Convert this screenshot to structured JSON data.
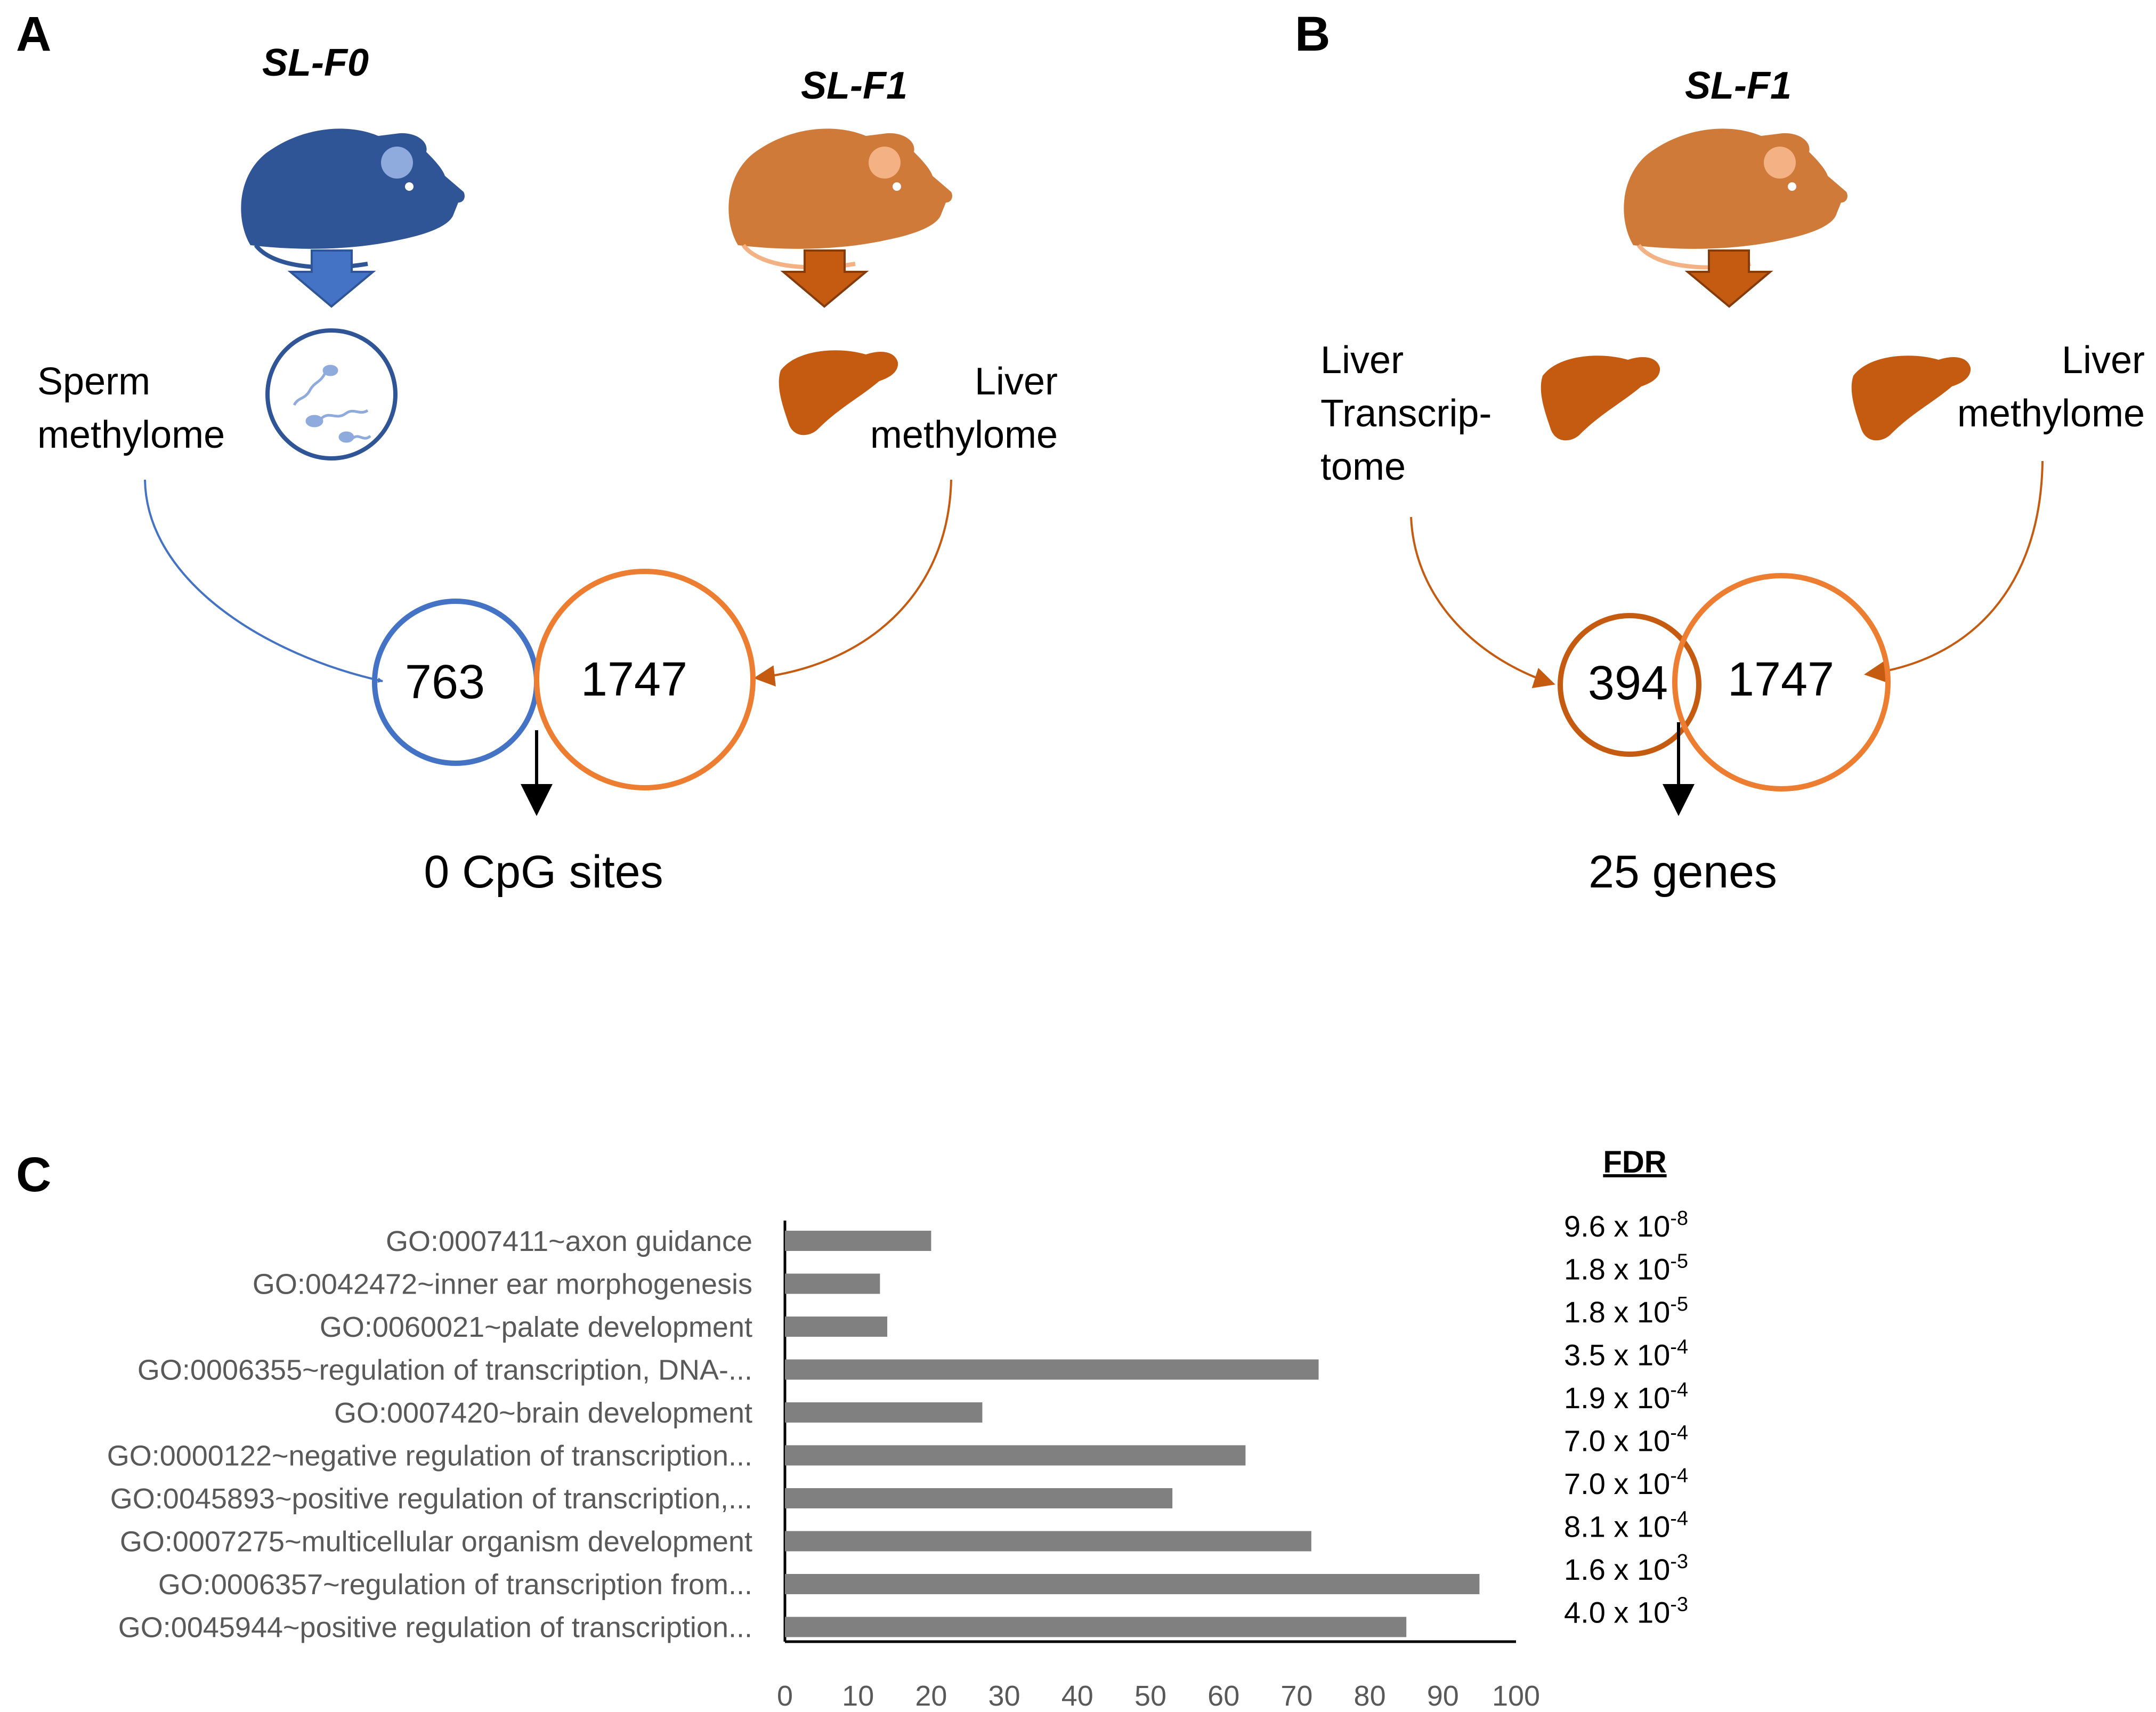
{
  "panels": {
    "a": {
      "letter": "A",
      "left_title": "SL-F0",
      "right_title": "SL-F1",
      "left_label_1": "Sperm",
      "left_label_2": "methylome",
      "right_label_1": "Liver",
      "right_label_2": "methylome",
      "venn_left": "763",
      "venn_right": "1747",
      "result": "0 CpG sites"
    },
    "b": {
      "letter": "B",
      "title": "SL-F1",
      "left_label_1": "Liver",
      "left_label_2": "Transcrip-",
      "left_label_3": "tome",
      "right_label_1": "Liver",
      "right_label_2": "methylome",
      "venn_left": "394",
      "venn_right": "1747",
      "result": "25 genes"
    },
    "c": {
      "letter": "C"
    }
  },
  "colors": {
    "blue": "#4472C4",
    "blue_dark": "#2F5597",
    "orange": "#ED7D31",
    "orange_dark": "#C55A11",
    "bar": "#808080"
  },
  "chart_data": {
    "type": "bar",
    "orientation": "horizontal",
    "categories": [
      "GO:0007411~axon guidance",
      "GO:0042472~inner ear morphogenesis",
      "GO:0060021~palate development",
      "GO:0006355~regulation of transcription, DNA-...",
      "GO:0007420~brain development",
      "GO:0000122~negative regulation of transcription...",
      "GO:0045893~positive regulation of transcription,...",
      "GO:0007275~multicellular organism development",
      "GO:0006357~regulation of transcription from...",
      "GO:0045944~positive regulation of transcription..."
    ],
    "values": [
      20,
      13,
      14,
      73,
      27,
      63,
      53,
      72,
      95,
      85
    ],
    "xlim": [
      0,
      100
    ],
    "xticks": [
      "0",
      "10",
      "20",
      "30",
      "40",
      "50",
      "60",
      "70",
      "80",
      "90",
      "100"
    ],
    "fdr_header": "FDR",
    "fdr": [
      {
        "base": "9.6 x 10",
        "exp": "-8"
      },
      {
        "base": "1.8 x 10",
        "exp": "-5"
      },
      {
        "base": "1.8 x 10",
        "exp": "-5"
      },
      {
        "base": "3.5 x 10",
        "exp": "-4"
      },
      {
        "base": "1.9 x 10",
        "exp": "-4"
      },
      {
        "base": "7.0 x 10",
        "exp": "-4"
      },
      {
        "base": "7.0 x 10",
        "exp": "-4"
      },
      {
        "base": "8.1 x 10",
        "exp": "-4"
      },
      {
        "base": "1.6 x 10",
        "exp": "-3"
      },
      {
        "base": "4.0 x 10",
        "exp": "-3"
      }
    ]
  }
}
